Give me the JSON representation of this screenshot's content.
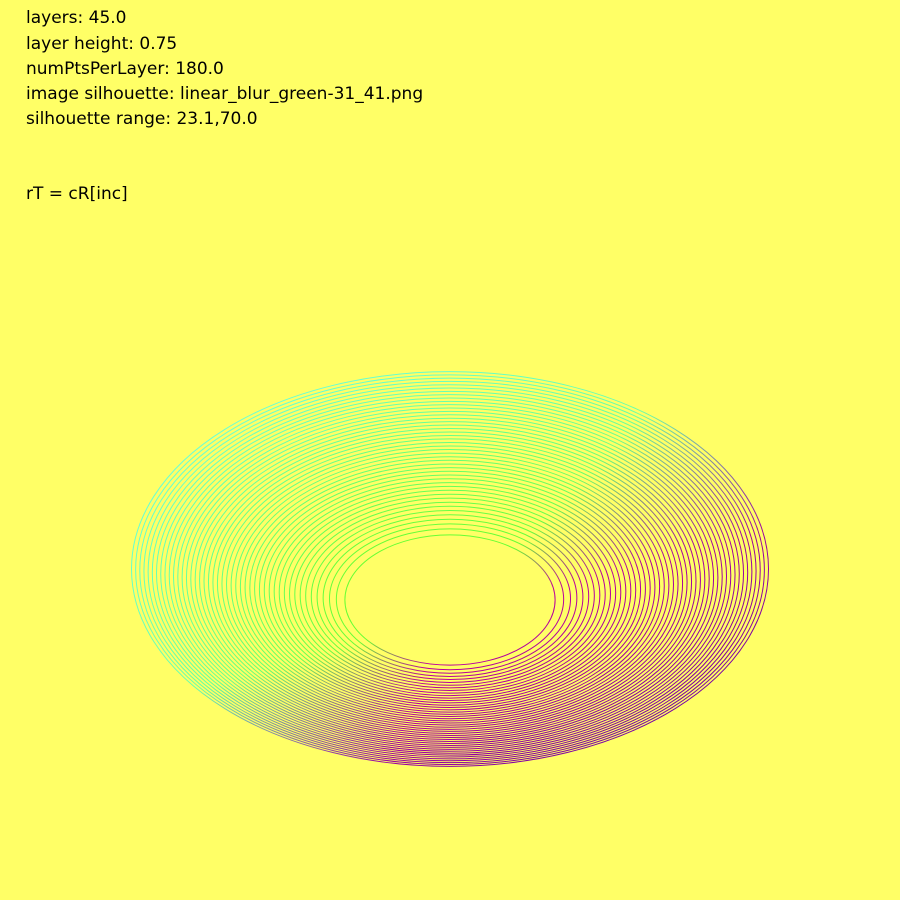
{
  "info": {
    "layers": "layers: 45.0",
    "layer_height": "layer height: 0.75",
    "num_pts_per_layer": "numPtsPerLayer: 180.0",
    "image_silhouette": "image silhouette: linear_blur_green-31_41.png",
    "silhouette_range": "silhouette range: 23.1,70.0",
    "formula": "rT = cR[inc]"
  },
  "render": {
    "layers": 45,
    "layer_height": 0.75,
    "num_pts_per_layer": 180,
    "silhouette_range": [
      23.1,
      70.0
    ],
    "background_color": "#ffff66",
    "gradient_colors": {
      "top_left": "#66ffee",
      "top_right": "#5500aa",
      "bottom": "#cc0099",
      "inner": "#66ff33"
    }
  }
}
